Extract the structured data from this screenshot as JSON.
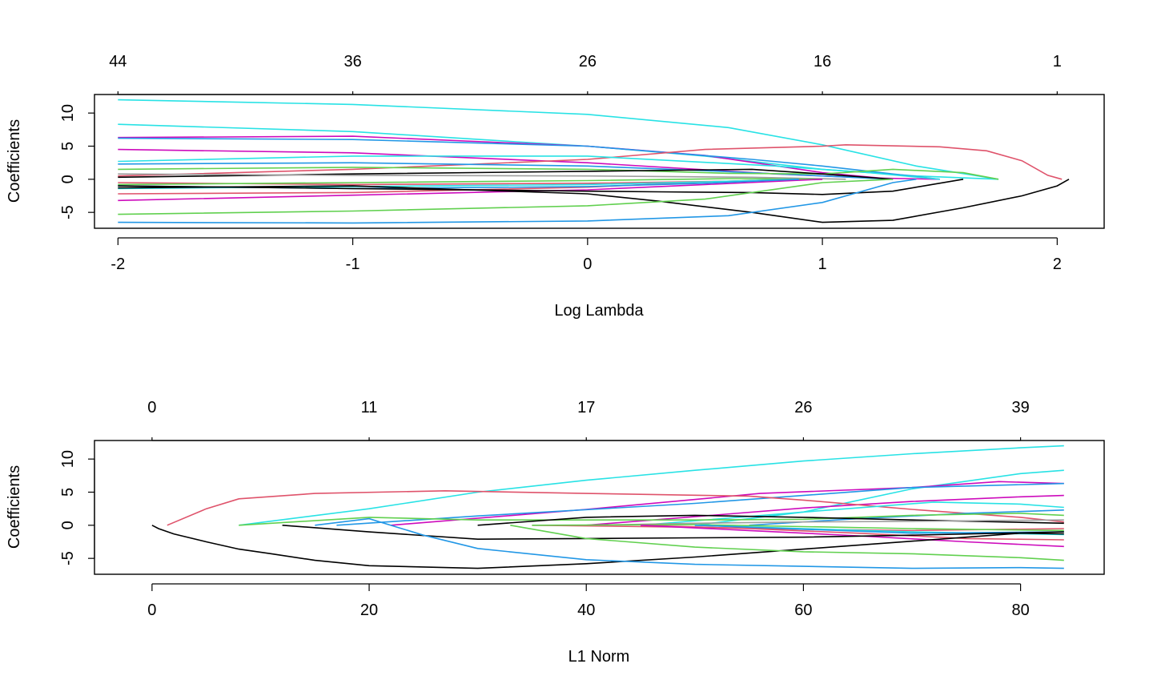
{
  "chart_data": [
    {
      "type": "line",
      "xlabel": "Log Lambda",
      "ylabel": "Coefficients",
      "xlim": [
        -2.1,
        2.2
      ],
      "ylim": [
        -7.4,
        12.8
      ],
      "x_ticks": [
        -2,
        -1,
        0,
        1,
        2
      ],
      "y_ticks": [
        -5,
        0,
        5,
        10
      ],
      "top_axis": {
        "positions": [
          -2,
          -1,
          0,
          1,
          2
        ],
        "labels": [
          "44",
          "36",
          "26",
          "16",
          "1"
        ]
      },
      "grid": false,
      "series": [
        {
          "color": "#28E2E5",
          "x": [
            -2,
            -1,
            0,
            0.6,
            1,
            1.4,
            1.75
          ],
          "y": [
            12.0,
            11.3,
            9.8,
            7.8,
            5.2,
            2.0,
            0.0
          ]
        },
        {
          "color": "#28E2E5",
          "x": [
            -2,
            -1,
            0,
            0.5,
            1,
            1.4,
            1.75
          ],
          "y": [
            8.3,
            7.2,
            5.0,
            3.5,
            1.5,
            0.5,
            0.0
          ]
        },
        {
          "color": "#CD0BBC",
          "x": [
            -2,
            -1,
            0,
            0.5,
            1,
            1.3
          ],
          "y": [
            6.3,
            6.5,
            5.0,
            3.6,
            1.0,
            0.0
          ]
        },
        {
          "color": "#2297E6",
          "x": [
            -2,
            -1,
            0,
            0.7,
            1,
            1.5
          ],
          "y": [
            6.2,
            6.0,
            5.0,
            3.0,
            2.0,
            0.0
          ]
        },
        {
          "color": "#CD0BBC",
          "x": [
            -2,
            -1,
            0,
            0.8,
            1.2,
            1.5
          ],
          "y": [
            4.5,
            4.0,
            2.5,
            0.8,
            0.2,
            0.0
          ]
        },
        {
          "color": "#DF536B",
          "x": [
            -2,
            -1,
            0,
            0.5,
            1,
            1.1,
            1.5,
            1.7,
            1.85,
            1.96,
            2.02
          ],
          "y": [
            0.5,
            1.5,
            3.0,
            4.5,
            5.0,
            5.2,
            4.9,
            4.3,
            2.8,
            0.6,
            0.0
          ]
        },
        {
          "color": "#28E2E5",
          "x": [
            -2,
            -1,
            0,
            0.8,
            1.2,
            1.5
          ],
          "y": [
            2.7,
            3.5,
            3.5,
            2.0,
            1.0,
            0.0
          ]
        },
        {
          "color": "#2297E6",
          "x": [
            -2,
            -1,
            0,
            0.5,
            1,
            1.3
          ],
          "y": [
            2.3,
            2.5,
            2.0,
            1.3,
            0.5,
            0.0
          ]
        },
        {
          "color": "#61D04F",
          "x": [
            -2,
            -1,
            0,
            0.6,
            1,
            1.3,
            1.6,
            1.75
          ],
          "y": [
            1.5,
            1.8,
            1.5,
            0.9,
            0.8,
            1.5,
            1.0,
            0.0
          ]
        },
        {
          "color": "#000000",
          "x": [
            -2,
            -1,
            0,
            0.7,
            1,
            1.3
          ],
          "y": [
            0.3,
            0.8,
            1.2,
            1.5,
            0.8,
            0.0
          ]
        },
        {
          "color": "#9E9E9E",
          "x": [
            -2,
            -1,
            0,
            0.7,
            1.1
          ],
          "y": [
            0.8,
            0.6,
            0.5,
            0.3,
            0.0
          ]
        },
        {
          "color": "#DF536B",
          "x": [
            -2,
            -1,
            0,
            0.6,
            1.0
          ],
          "y": [
            -0.5,
            -0.8,
            -0.6,
            -0.3,
            0.0
          ]
        },
        {
          "color": "#61D04F",
          "x": [
            -2,
            -1,
            0,
            0.6,
            1.0
          ],
          "y": [
            -0.8,
            -0.5,
            -0.2,
            0.1,
            0.0
          ]
        },
        {
          "color": "#DF536B",
          "x": [
            -2,
            -1,
            0,
            0.5,
            0.9
          ],
          "y": [
            -2.2,
            -2.0,
            -1.2,
            -0.4,
            0.0
          ]
        },
        {
          "color": "#CD0BBC",
          "x": [
            -2,
            -1,
            0,
            0.5,
            1.0
          ],
          "y": [
            -3.2,
            -2.4,
            -1.6,
            -0.8,
            0.0
          ]
        },
        {
          "color": "#28E2E5",
          "x": [
            -2,
            -1,
            0,
            0.5,
            0.9
          ],
          "y": [
            -1.4,
            -1.1,
            -0.8,
            -0.4,
            0.0
          ]
        },
        {
          "color": "#2297E6",
          "x": [
            -2,
            -1,
            0,
            0.5,
            0.9
          ],
          "y": [
            -1.0,
            -1.4,
            -1.1,
            -0.6,
            0.0
          ]
        },
        {
          "color": "#000000",
          "x": [
            -2,
            -1,
            0,
            0.3,
            0.7,
            1.0,
            1.3,
            1.6
          ],
          "y": [
            -1.0,
            -1.4,
            -1.8,
            -1.9,
            -2.0,
            -2.3,
            -1.8,
            0.0
          ]
        },
        {
          "color": "#000000",
          "x": [
            -2,
            -1,
            0,
            0.3,
            0.7,
            1.0,
            1.3,
            1.6,
            1.85,
            2.0,
            2.05
          ],
          "y": [
            -1.3,
            -1.0,
            -2.2,
            -3.3,
            -5.0,
            -6.5,
            -6.2,
            -4.3,
            -2.5,
            -1.0,
            0.0
          ]
        },
        {
          "color": "#61D04F",
          "x": [
            -2,
            -1,
            0,
            0.5,
            1,
            1.3
          ],
          "y": [
            -5.3,
            -4.8,
            -4.0,
            -3.0,
            -0.5,
            0.0
          ]
        },
        {
          "color": "#2297E6",
          "x": [
            -2,
            -1,
            0,
            0.6,
            1.0,
            1.3,
            1.4
          ],
          "y": [
            -6.5,
            -6.6,
            -6.3,
            -5.5,
            -3.5,
            -0.5,
            0.0
          ]
        }
      ]
    },
    {
      "type": "line",
      "xlabel": "L1 Norm",
      "ylabel": "Coefficients",
      "xlim": [
        -5.3,
        87.7
      ],
      "ylim": [
        -7.4,
        12.8
      ],
      "x_ticks": [
        0,
        20,
        40,
        60,
        80
      ],
      "y_ticks": [
        -5,
        0,
        5,
        10
      ],
      "top_axis": {
        "positions": [
          0,
          20,
          40,
          60,
          80
        ],
        "labels": [
          "0",
          "11",
          "17",
          "26",
          "39"
        ]
      },
      "grid": false,
      "series": [
        {
          "color": "#28E2E5",
          "x": [
            8,
            20,
            30,
            40,
            50,
            60,
            70,
            80,
            84
          ],
          "y": [
            0.0,
            2.5,
            5.0,
            6.8,
            8.3,
            9.7,
            10.8,
            11.7,
            12.0
          ]
        },
        {
          "color": "#28E2E5",
          "x": [
            50,
            60,
            70,
            80,
            84
          ],
          "y": [
            0.0,
            2.0,
            5.5,
            7.8,
            8.3
          ]
        },
        {
          "color": "#CD0BBC",
          "x": [
            22,
            40,
            56,
            70,
            78,
            84
          ],
          "y": [
            0.0,
            2.4,
            4.8,
            5.7,
            6.6,
            6.3
          ]
        },
        {
          "color": "#2297E6",
          "x": [
            17,
            30,
            50,
            70,
            84
          ],
          "y": [
            0.0,
            1.4,
            3.3,
            5.7,
            6.3
          ]
        },
        {
          "color": "#CD0BBC",
          "x": [
            40,
            60,
            70,
            80,
            84
          ],
          "y": [
            0.0,
            2.6,
            3.6,
            4.3,
            4.5
          ]
        },
        {
          "color": "#DF536B",
          "x": [
            1.4,
            5,
            8,
            15,
            27,
            40,
            55,
            60,
            70,
            80,
            84
          ],
          "y": [
            0.0,
            2.5,
            4.0,
            4.8,
            5.2,
            4.8,
            4.4,
            3.8,
            2.4,
            1.2,
            0.5
          ]
        },
        {
          "color": "#28E2E5",
          "x": [
            45,
            60,
            72,
            80,
            84
          ],
          "y": [
            0.0,
            2.0,
            3.5,
            3.2,
            2.7
          ]
        },
        {
          "color": "#2297E6",
          "x": [
            55,
            65,
            75,
            84
          ],
          "y": [
            0.0,
            1.0,
            1.8,
            2.3
          ]
        },
        {
          "color": "#61D04F",
          "x": [
            8,
            20,
            30,
            40,
            50,
            60,
            70,
            80,
            84
          ],
          "y": [
            0.0,
            1.2,
            0.8,
            0.8,
            0.8,
            0.9,
            1.5,
            1.8,
            1.5
          ]
        },
        {
          "color": "#000000",
          "x": [
            30,
            40,
            50,
            60,
            70,
            84
          ],
          "y": [
            0.0,
            1.2,
            1.5,
            1.2,
            0.8,
            0.3
          ]
        },
        {
          "color": "#9E9E9E",
          "x": [
            40,
            50,
            60,
            70,
            84
          ],
          "y": [
            0.0,
            0.3,
            0.5,
            0.6,
            0.8
          ]
        },
        {
          "color": "#DF536B",
          "x": [
            35,
            50,
            60,
            70,
            84
          ],
          "y": [
            0.0,
            -0.3,
            -0.6,
            -0.8,
            -0.5
          ]
        },
        {
          "color": "#61D04F",
          "x": [
            35,
            50,
            60,
            70,
            84
          ],
          "y": [
            0.0,
            0.1,
            -0.2,
            -0.5,
            -0.8
          ]
        },
        {
          "color": "#DF536B",
          "x": [
            45,
            55,
            65,
            75,
            84
          ],
          "y": [
            0.0,
            -0.5,
            -1.2,
            -2.0,
            -2.2
          ]
        },
        {
          "color": "#CD0BBC",
          "x": [
            45,
            55,
            65,
            75,
            84
          ],
          "y": [
            0.0,
            -0.8,
            -1.6,
            -2.5,
            -3.2
          ]
        },
        {
          "color": "#28E2E5",
          "x": [
            50,
            60,
            70,
            84
          ],
          "y": [
            0.0,
            -0.5,
            -1.0,
            -1.4
          ]
        },
        {
          "color": "#2297E6",
          "x": [
            50,
            60,
            70,
            84
          ],
          "y": [
            0.0,
            -0.6,
            -1.2,
            -1.0
          ]
        },
        {
          "color": "#000000",
          "x": [
            12,
            20,
            30,
            40,
            50,
            60,
            70,
            84
          ],
          "y": [
            0.0,
            -1.0,
            -2.1,
            -2.0,
            -1.9,
            -1.8,
            -1.5,
            -1.0
          ]
        },
        {
          "color": "#000000",
          "x": [
            0,
            0.6,
            2,
            5,
            8,
            11,
            15,
            20,
            30,
            40,
            50,
            60,
            70,
            80,
            84
          ],
          "y": [
            0.0,
            -0.5,
            -1.3,
            -2.5,
            -3.6,
            -4.3,
            -5.3,
            -6.1,
            -6.5,
            -5.8,
            -4.8,
            -3.6,
            -2.4,
            -1.2,
            -1.3
          ]
        },
        {
          "color": "#61D04F",
          "x": [
            33,
            40,
            50,
            60,
            70,
            80,
            84
          ],
          "y": [
            0.0,
            -2.0,
            -3.3,
            -4.0,
            -4.3,
            -4.9,
            -5.3
          ]
        },
        {
          "color": "#2297E6",
          "x": [
            15,
            20,
            25,
            30,
            40,
            50,
            60,
            70,
            80,
            84
          ],
          "y": [
            0.0,
            1.0,
            -1.5,
            -3.5,
            -5.2,
            -5.9,
            -6.2,
            -6.5,
            -6.4,
            -6.5
          ]
        }
      ]
    }
  ]
}
